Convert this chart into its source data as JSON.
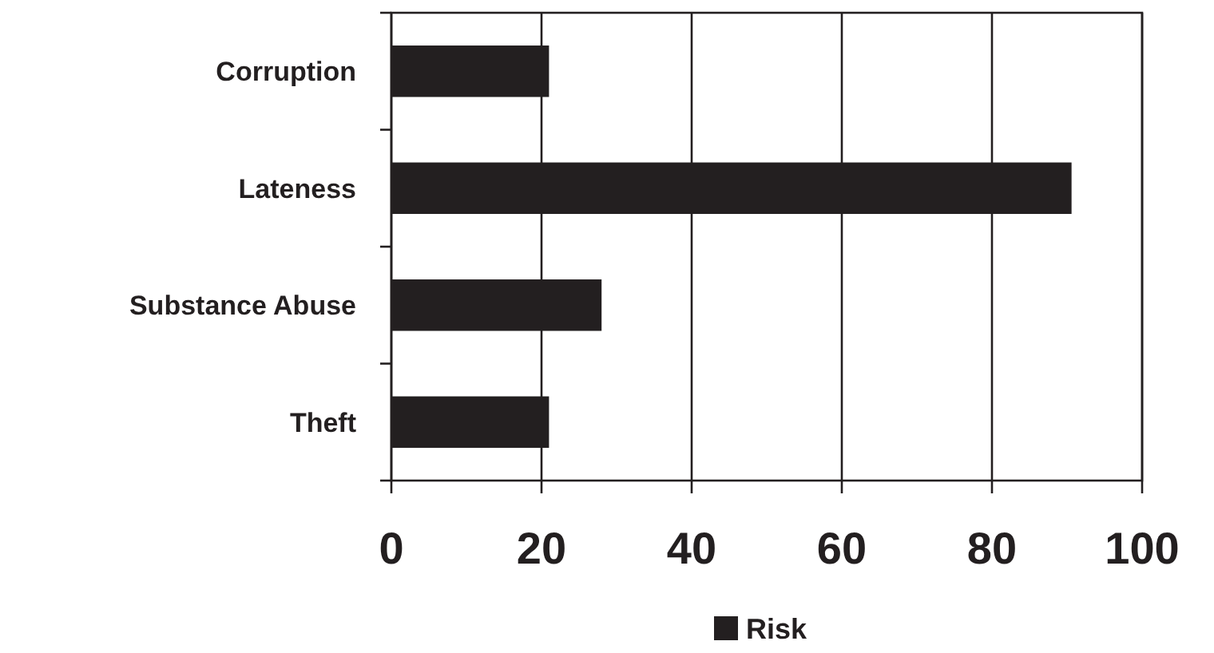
{
  "chart_data": {
    "type": "bar",
    "orientation": "horizontal",
    "categories": [
      "Corruption",
      "Lateness",
      "Substance Abuse",
      "Theft"
    ],
    "series": [
      {
        "name": "Risk",
        "color": "#231f20",
        "values": [
          21,
          90.6,
          28,
          21
        ]
      }
    ],
    "xlim": [
      0,
      100
    ],
    "xticks": [
      0,
      20,
      40,
      60,
      80,
      100
    ],
    "grid": "x",
    "legend": "bottom"
  }
}
